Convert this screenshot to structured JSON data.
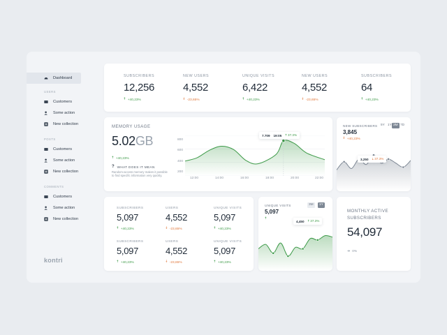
{
  "brand": {
    "logo": "kontri"
  },
  "sidebar": {
    "active_item": "Dashboard",
    "sections": [
      {
        "heading": "USERS",
        "items": [
          "Customers",
          "Some action",
          "New collection"
        ]
      },
      {
        "heading": "POSTS",
        "items": [
          "Customers",
          "Some action",
          "New collection"
        ]
      },
      {
        "heading": "COMMENTS",
        "items": [
          "Customers",
          "Some action",
          "New collection"
        ]
      }
    ]
  },
  "top_stats": [
    {
      "label": "SUBSCRIBERS",
      "value": "12,256",
      "delta": "+40,23%",
      "trend": "up"
    },
    {
      "label": "NEW USERS",
      "value": "4,552",
      "delta": "-23,65%",
      "trend": "down"
    },
    {
      "label": "UNIQUE VISITS",
      "value": "6,422",
      "delta": "+40,23%",
      "trend": "up"
    },
    {
      "label": "NEW USERS",
      "value": "4,552",
      "delta": "-23,65%",
      "trend": "down"
    },
    {
      "label": "SUBSCRIBERS",
      "value": "64",
      "delta": "+40,23%",
      "trend": "up"
    }
  ],
  "memory": {
    "title": "MEMORY USAGE",
    "value": "5.02",
    "unit": "GB",
    "delta": "+40,23%",
    "help_title": "WHAT DOES IT MEAN",
    "help_text": "Random-access memory makes it possible to find specific information very quickly.",
    "tooltip": {
      "value": "7.709",
      "time": "19:05",
      "delta": "37.3%"
    },
    "chart_data": {
      "type": "area",
      "title": "MEMORY USAGE",
      "x": [
        "12:00",
        "14:00",
        "16:00",
        "18:00",
        "20:00",
        "22:00"
      ],
      "y_ticks": [
        "800",
        "600",
        "400",
        "200"
      ],
      "ylim": [
        200,
        800
      ],
      "points": [
        [
          11.0,
          420
        ],
        [
          12.0,
          470
        ],
        [
          13.0,
          580
        ],
        [
          14.0,
          640
        ],
        [
          15.0,
          590
        ],
        [
          16.0,
          430
        ],
        [
          17.0,
          380
        ],
        [
          18.5,
          520
        ],
        [
          19.1,
          720
        ],
        [
          20.0,
          680
        ],
        [
          21.0,
          540
        ],
        [
          22.5,
          440
        ]
      ]
    }
  },
  "subs_chart": {
    "title": "NEW SUBSCRIBERS",
    "value": "3,845",
    "delta": "+40,23%",
    "ranges": [
      "5Y",
      "1Y",
      "3M",
      "7D"
    ],
    "active_range": "3M",
    "tooltip": {
      "value": "3,250",
      "delta": "37.3%"
    },
    "chart_data": {
      "type": "area",
      "points": [
        0.75,
        0.45,
        0.7,
        0.35,
        0.55,
        0.2,
        0.5,
        0.35,
        0.5,
        0.65,
        0.4
      ]
    }
  },
  "grid_stats": [
    {
      "label": "SUBSCRIBERS",
      "value": "5,097",
      "delta": "+40,23%",
      "trend": "up"
    },
    {
      "label": "USERS",
      "value": "4,552",
      "delta": "-23,65%",
      "trend": "down"
    },
    {
      "label": "UNIQUE VISITS",
      "value": "5,097",
      "delta": "+40,23%",
      "trend": "up"
    },
    {
      "label": "SUBSCRIBERS",
      "value": "5,097",
      "delta": "+40,23%",
      "trend": "up"
    },
    {
      "label": "USERS",
      "value": "4,552",
      "delta": "-23,65%",
      "trend": "down"
    },
    {
      "label": "UNIQUE VISITS",
      "value": "5,097",
      "delta": "+40,23%",
      "trend": "up"
    }
  ],
  "visits": {
    "title": "UNIQUE VISITS",
    "value": "5,097",
    "ranges": [
      "3M",
      "1Y"
    ],
    "active_range": "1Y",
    "tooltip": {
      "value": "4,450",
      "delta": "37.3%"
    },
    "chart_data": {
      "type": "area",
      "points": [
        0.5,
        0.65,
        0.35,
        0.7,
        0.25,
        0.55,
        0.5,
        0.85,
        0.8,
        0.95,
        0.9
      ]
    }
  },
  "monthly": {
    "title_line1": "MONTHLY ACTIVE",
    "title_line2": "SUBSCRIBERS",
    "value": "54,097",
    "delta": "0%"
  },
  "colors": {
    "accent": "#3d9a48",
    "down": "#e0773a",
    "neutral": "#7d8794"
  }
}
